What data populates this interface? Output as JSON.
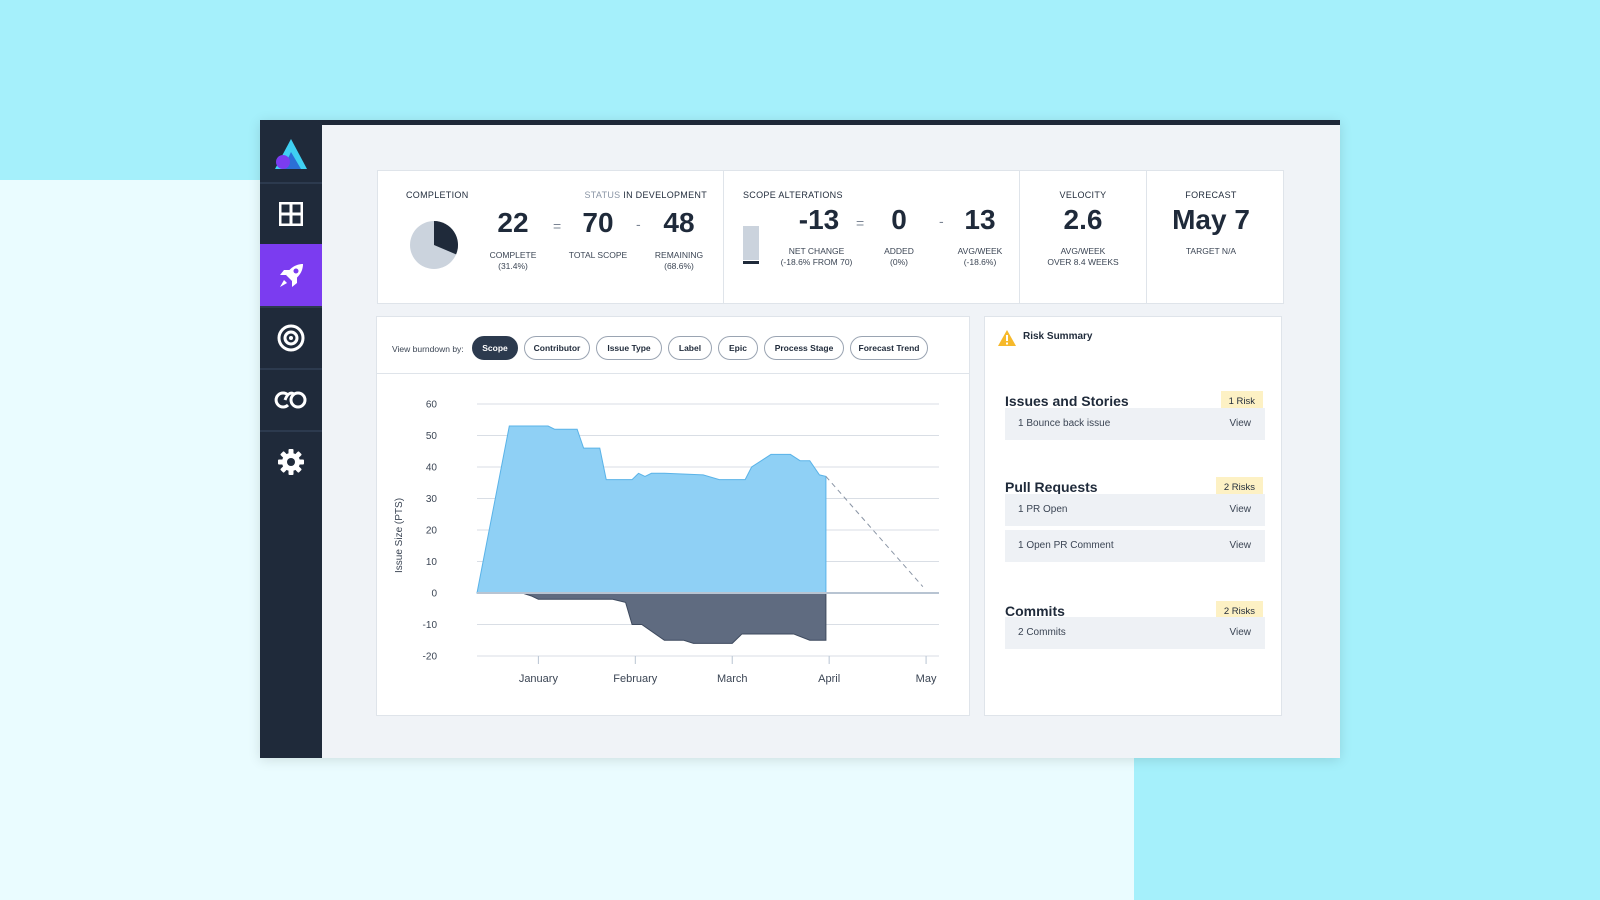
{
  "stats": {
    "completion": {
      "label": "COMPLETION",
      "status_label": "STATUS",
      "status_value": "IN DEVELOPMENT",
      "complete_value": "22",
      "complete_label": "COMPLETE",
      "complete_pct": "(31.4%)",
      "eq": "=",
      "total_value": "70",
      "total_label": "TOTAL SCOPE",
      "minus": "-",
      "remaining_value": "48",
      "remaining_label": "REMAINING",
      "remaining_pct": "(68.6%)",
      "pie_fraction": 0.314
    },
    "scope": {
      "label": "SCOPE ALTERATIONS",
      "net_value": "-13",
      "net_label": "NET CHANGE",
      "net_sub": "(-18.6% FROM 70)",
      "eq": "=",
      "added_value": "0",
      "added_label": "ADDED",
      "added_sub": "(0%)",
      "minus": "-",
      "avg_value": "13",
      "avg_label": "AVG/WEEK",
      "avg_sub": "(-18.6%)"
    },
    "velocity": {
      "label": "VELOCITY",
      "value": "2.6",
      "sub1": "AVG/WEEK",
      "sub2": "OVER 8.4 WEEKS"
    },
    "forecast": {
      "label": "FORECAST",
      "value": "May 7",
      "sub": "TARGET N/A"
    }
  },
  "burndown": {
    "filter_label": "View burndown by:",
    "filters": [
      "Scope",
      "Contributor",
      "Issue Type",
      "Label",
      "Epic",
      "Process Stage",
      "Forecast Trend"
    ],
    "active_filter": "Scope"
  },
  "chart_data": {
    "type": "area",
    "ylabel": "Issue Size (PTS)",
    "ylim": [
      -20,
      60
    ],
    "yticks": [
      60,
      50,
      40,
      30,
      20,
      10,
      0,
      -10,
      -20
    ],
    "x_ticks": [
      "January",
      "February",
      "March",
      "April",
      "May"
    ],
    "grid": true,
    "series": [
      {
        "kind": "positive-area",
        "color": "#8fd0f5",
        "x": [
          "Dec 27",
          "Jan 6",
          "Jan 18",
          "Jan 20",
          "Jan 27",
          "Jan 29",
          "Feb 3",
          "Feb 5",
          "Feb 13",
          "Feb 15",
          "Feb 17",
          "Feb 19",
          "Feb 23",
          "Mar 7",
          "Mar 12",
          "Mar 16",
          "Mar 20",
          "Mar 22",
          "Mar 28",
          "Apr 3",
          "Apr 6",
          "Apr 9",
          "Apr 12",
          "Apr 14"
        ],
        "values": [
          0,
          53,
          53,
          52,
          52,
          46,
          46,
          36,
          36,
          38,
          37,
          38,
          38,
          37.5,
          36,
          36,
          36,
          40,
          44,
          44,
          42,
          42,
          37.5,
          37
        ]
      },
      {
        "kind": "negative-area",
        "color": "#5f6b80",
        "x": [
          "Jan 10",
          "Jan 13",
          "Jan 15",
          "Feb 7",
          "Feb 11",
          "Feb 13",
          "Feb 16",
          "Feb 23",
          "Mar 1",
          "Mar 4",
          "Mar 10",
          "Mar 16",
          "Mar 19",
          "Mar 23",
          "Apr 4",
          "Apr 9",
          "Apr 14"
        ],
        "values": [
          0,
          -1,
          -2,
          -2,
          -3,
          -10,
          -10,
          -15,
          -15,
          -16,
          -16,
          -16,
          -13,
          -13,
          -13,
          -15,
          -15
        ]
      },
      {
        "kind": "forecast-trend",
        "color": "#8a95a5",
        "x": [
          "Apr 14",
          "May 14"
        ],
        "values": [
          37,
          2
        ]
      }
    ]
  },
  "risk": {
    "title": "Risk Summary",
    "sections": [
      {
        "title": "Issues and Stories",
        "badge": "1 Risk",
        "rows": [
          {
            "text": "1 Bounce back issue",
            "action": "View"
          }
        ]
      },
      {
        "title": "Pull Requests",
        "badge": "2 Risks",
        "rows": [
          {
            "text": "1 PR Open",
            "action": "View"
          },
          {
            "text": "1 Open PR Comment",
            "action": "View"
          }
        ]
      },
      {
        "title": "Commits",
        "badge": "2 Risks",
        "rows": [
          {
            "text": "2 Commits",
            "action": "View"
          }
        ]
      }
    ]
  }
}
